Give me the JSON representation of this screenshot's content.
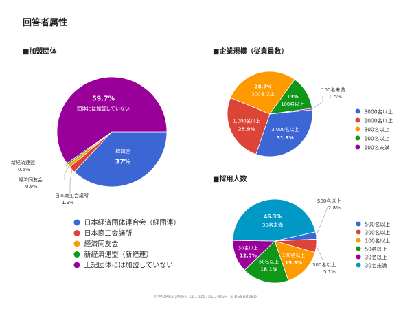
{
  "page": {
    "title": "回答者属性",
    "footer": "©WORKS JAPAN Co., Ltd. ALL RIGHTS RESERVED."
  },
  "sections": {
    "union": "■加盟団体",
    "size": "■企業規模（従業員数）",
    "hire": "■採用人数"
  },
  "chart_data": [
    {
      "id": "union",
      "type": "pie",
      "title": "加盟団体",
      "slices": [
        {
          "label": "経団連",
          "value": 37.0,
          "pct": "37%",
          "color": "#3b66d4",
          "legend": "日本経済団体連合会（経団連）"
        },
        {
          "label": "日本商工会議所",
          "value": 1.9,
          "pct": "1.9%",
          "color": "#db4437",
          "legend": "日本商工会議所"
        },
        {
          "label": "経済同友会",
          "value": 0.9,
          "pct": "0.9%",
          "color": "#ff9900",
          "legend": "経済同友会"
        },
        {
          "label": "新経済連盟",
          "value": 0.5,
          "pct": "0.5%",
          "color": "#109618",
          "legend": "新経済連盟（新経連）"
        },
        {
          "label": "団体には加盟していない",
          "value": 59.7,
          "pct": "59.7%",
          "color": "#990099",
          "legend": "上記団体には加盟していない"
        }
      ]
    },
    {
      "id": "size",
      "type": "pie",
      "title": "企業規模（従業員数）",
      "slices": [
        {
          "label": "3,000名以上",
          "value": 31.9,
          "pct": "31.9%",
          "color": "#3b66d4",
          "legend": "3000名以上"
        },
        {
          "label": "1,000名以上",
          "value": 25.9,
          "pct": "25.9%",
          "color": "#db4437",
          "legend": "1000名以上"
        },
        {
          "label": "300名以上",
          "value": 28.7,
          "pct": "28.7%",
          "color": "#ff9900",
          "legend": "300名以上"
        },
        {
          "label": "100名以上",
          "value": 13,
          "pct": "13%",
          "color": "#109618",
          "legend": "100名以上"
        },
        {
          "label": "100名未満",
          "value": 0.5,
          "pct": "0.5%",
          "color": "#990099",
          "legend": "100名未満"
        }
      ]
    },
    {
      "id": "hire",
      "type": "pie",
      "title": "採用人数",
      "slices": [
        {
          "label": "500名以上",
          "value": 2.8,
          "pct": "2.8%",
          "color": "#3b66d4",
          "legend": "500名以上"
        },
        {
          "label": "300名以上",
          "value": 5.1,
          "pct": "5.1%",
          "color": "#db4437",
          "legend": "300名以上"
        },
        {
          "label": "100名以上",
          "value": 15.3,
          "pct": "15.3%",
          "color": "#ff9900",
          "legend": "100名以上"
        },
        {
          "label": "50名以上",
          "value": 18.1,
          "pct": "18.1%",
          "color": "#109618",
          "legend": "50名以上"
        },
        {
          "label": "30名以上",
          "value": 12.5,
          "pct": "12.5%",
          "color": "#990099",
          "legend": "30名以上"
        },
        {
          "label": "30名未満",
          "value": 46.3,
          "pct": "46.3%",
          "color": "#0099c6",
          "legend": "30名未満"
        }
      ]
    }
  ]
}
